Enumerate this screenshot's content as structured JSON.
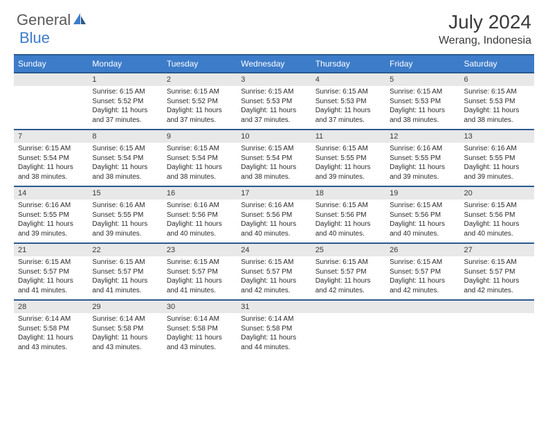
{
  "brand": {
    "part1": "General",
    "part2": "Blue"
  },
  "title": "July 2024",
  "location": "Werang, Indonesia",
  "colors": {
    "header_bg": "#3d7cc9",
    "header_border": "#2a5a8f",
    "daynum_bg": "#e8e8e8",
    "text": "#3a3a3a"
  },
  "dayHeaders": [
    "Sunday",
    "Monday",
    "Tuesday",
    "Wednesday",
    "Thursday",
    "Friday",
    "Saturday"
  ],
  "weeks": [
    [
      {
        "num": "",
        "sunrise": "",
        "sunset": "",
        "daylight": ""
      },
      {
        "num": "1",
        "sunrise": "Sunrise: 6:15 AM",
        "sunset": "Sunset: 5:52 PM",
        "daylight": "Daylight: 11 hours and 37 minutes."
      },
      {
        "num": "2",
        "sunrise": "Sunrise: 6:15 AM",
        "sunset": "Sunset: 5:52 PM",
        "daylight": "Daylight: 11 hours and 37 minutes."
      },
      {
        "num": "3",
        "sunrise": "Sunrise: 6:15 AM",
        "sunset": "Sunset: 5:53 PM",
        "daylight": "Daylight: 11 hours and 37 minutes."
      },
      {
        "num": "4",
        "sunrise": "Sunrise: 6:15 AM",
        "sunset": "Sunset: 5:53 PM",
        "daylight": "Daylight: 11 hours and 37 minutes."
      },
      {
        "num": "5",
        "sunrise": "Sunrise: 6:15 AM",
        "sunset": "Sunset: 5:53 PM",
        "daylight": "Daylight: 11 hours and 38 minutes."
      },
      {
        "num": "6",
        "sunrise": "Sunrise: 6:15 AM",
        "sunset": "Sunset: 5:53 PM",
        "daylight": "Daylight: 11 hours and 38 minutes."
      }
    ],
    [
      {
        "num": "7",
        "sunrise": "Sunrise: 6:15 AM",
        "sunset": "Sunset: 5:54 PM",
        "daylight": "Daylight: 11 hours and 38 minutes."
      },
      {
        "num": "8",
        "sunrise": "Sunrise: 6:15 AM",
        "sunset": "Sunset: 5:54 PM",
        "daylight": "Daylight: 11 hours and 38 minutes."
      },
      {
        "num": "9",
        "sunrise": "Sunrise: 6:15 AM",
        "sunset": "Sunset: 5:54 PM",
        "daylight": "Daylight: 11 hours and 38 minutes."
      },
      {
        "num": "10",
        "sunrise": "Sunrise: 6:15 AM",
        "sunset": "Sunset: 5:54 PM",
        "daylight": "Daylight: 11 hours and 38 minutes."
      },
      {
        "num": "11",
        "sunrise": "Sunrise: 6:15 AM",
        "sunset": "Sunset: 5:55 PM",
        "daylight": "Daylight: 11 hours and 39 minutes."
      },
      {
        "num": "12",
        "sunrise": "Sunrise: 6:16 AM",
        "sunset": "Sunset: 5:55 PM",
        "daylight": "Daylight: 11 hours and 39 minutes."
      },
      {
        "num": "13",
        "sunrise": "Sunrise: 6:16 AM",
        "sunset": "Sunset: 5:55 PM",
        "daylight": "Daylight: 11 hours and 39 minutes."
      }
    ],
    [
      {
        "num": "14",
        "sunrise": "Sunrise: 6:16 AM",
        "sunset": "Sunset: 5:55 PM",
        "daylight": "Daylight: 11 hours and 39 minutes."
      },
      {
        "num": "15",
        "sunrise": "Sunrise: 6:16 AM",
        "sunset": "Sunset: 5:55 PM",
        "daylight": "Daylight: 11 hours and 39 minutes."
      },
      {
        "num": "16",
        "sunrise": "Sunrise: 6:16 AM",
        "sunset": "Sunset: 5:56 PM",
        "daylight": "Daylight: 11 hours and 40 minutes."
      },
      {
        "num": "17",
        "sunrise": "Sunrise: 6:16 AM",
        "sunset": "Sunset: 5:56 PM",
        "daylight": "Daylight: 11 hours and 40 minutes."
      },
      {
        "num": "18",
        "sunrise": "Sunrise: 6:15 AM",
        "sunset": "Sunset: 5:56 PM",
        "daylight": "Daylight: 11 hours and 40 minutes."
      },
      {
        "num": "19",
        "sunrise": "Sunrise: 6:15 AM",
        "sunset": "Sunset: 5:56 PM",
        "daylight": "Daylight: 11 hours and 40 minutes."
      },
      {
        "num": "20",
        "sunrise": "Sunrise: 6:15 AM",
        "sunset": "Sunset: 5:56 PM",
        "daylight": "Daylight: 11 hours and 40 minutes."
      }
    ],
    [
      {
        "num": "21",
        "sunrise": "Sunrise: 6:15 AM",
        "sunset": "Sunset: 5:57 PM",
        "daylight": "Daylight: 11 hours and 41 minutes."
      },
      {
        "num": "22",
        "sunrise": "Sunrise: 6:15 AM",
        "sunset": "Sunset: 5:57 PM",
        "daylight": "Daylight: 11 hours and 41 minutes."
      },
      {
        "num": "23",
        "sunrise": "Sunrise: 6:15 AM",
        "sunset": "Sunset: 5:57 PM",
        "daylight": "Daylight: 11 hours and 41 minutes."
      },
      {
        "num": "24",
        "sunrise": "Sunrise: 6:15 AM",
        "sunset": "Sunset: 5:57 PM",
        "daylight": "Daylight: 11 hours and 42 minutes."
      },
      {
        "num": "25",
        "sunrise": "Sunrise: 6:15 AM",
        "sunset": "Sunset: 5:57 PM",
        "daylight": "Daylight: 11 hours and 42 minutes."
      },
      {
        "num": "26",
        "sunrise": "Sunrise: 6:15 AM",
        "sunset": "Sunset: 5:57 PM",
        "daylight": "Daylight: 11 hours and 42 minutes."
      },
      {
        "num": "27",
        "sunrise": "Sunrise: 6:15 AM",
        "sunset": "Sunset: 5:57 PM",
        "daylight": "Daylight: 11 hours and 42 minutes."
      }
    ],
    [
      {
        "num": "28",
        "sunrise": "Sunrise: 6:14 AM",
        "sunset": "Sunset: 5:58 PM",
        "daylight": "Daylight: 11 hours and 43 minutes."
      },
      {
        "num": "29",
        "sunrise": "Sunrise: 6:14 AM",
        "sunset": "Sunset: 5:58 PM",
        "daylight": "Daylight: 11 hours and 43 minutes."
      },
      {
        "num": "30",
        "sunrise": "Sunrise: 6:14 AM",
        "sunset": "Sunset: 5:58 PM",
        "daylight": "Daylight: 11 hours and 43 minutes."
      },
      {
        "num": "31",
        "sunrise": "Sunrise: 6:14 AM",
        "sunset": "Sunset: 5:58 PM",
        "daylight": "Daylight: 11 hours and 44 minutes."
      },
      {
        "num": "",
        "sunrise": "",
        "sunset": "",
        "daylight": ""
      },
      {
        "num": "",
        "sunrise": "",
        "sunset": "",
        "daylight": ""
      },
      {
        "num": "",
        "sunrise": "",
        "sunset": "",
        "daylight": ""
      }
    ]
  ]
}
